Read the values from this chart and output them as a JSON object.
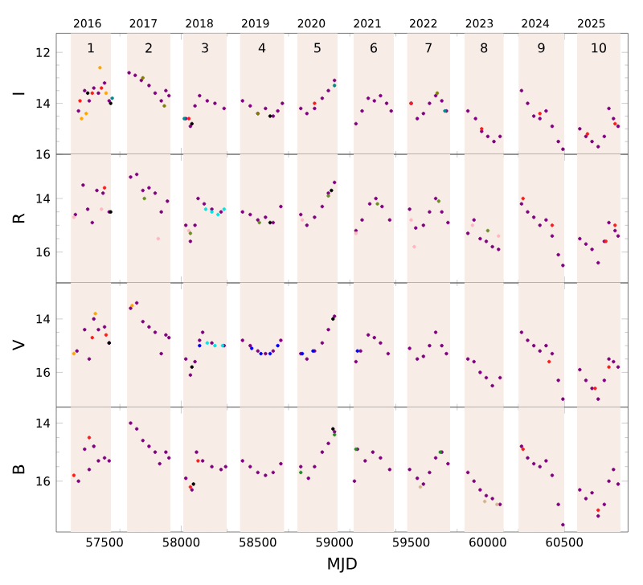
{
  "chart_data": [
    {
      "type": "scatter",
      "ylabel": "I",
      "marker": "circle",
      "tick_labels": "y",
      "xlim": [
        57185,
        60915
      ],
      "ylim": [
        16,
        11.25
      ],
      "yticks": [
        12,
        14,
        16
      ],
      "xticks": [
        57500,
        58000,
        58500,
        59000,
        59500,
        60000,
        60500
      ],
      "x2lim": [
        2015.444,
        2025.654
      ],
      "x2ticks": [
        2016,
        2017,
        2018,
        2019,
        2020,
        2021,
        2022,
        2023,
        2024,
        2025
      ],
      "bands": [
        {
          "axis": "x",
          "from": 57280,
          "to": 57542,
          "color": "#f7ece6",
          "label": "1"
        },
        {
          "axis": "x",
          "from": 57647,
          "to": 57930,
          "color": "#f7ece6",
          "label": "2"
        },
        {
          "axis": "x",
          "from": 58014,
          "to": 58297,
          "color": "#f7ece6",
          "label": "3"
        },
        {
          "axis": "x",
          "from": 58384,
          "to": 58671,
          "color": "#f7ece6",
          "label": "4"
        },
        {
          "axis": "x",
          "from": 58758,
          "to": 59020,
          "color": "#f7ece6",
          "label": "5"
        },
        {
          "axis": "x",
          "from": 59125,
          "to": 59387,
          "color": "#f7ece6",
          "label": "6"
        },
        {
          "axis": "x",
          "from": 59474,
          "to": 59754,
          "color": "#f7ece6",
          "label": "7"
        },
        {
          "axis": "x",
          "from": 59848,
          "to": 60103,
          "color": "#f7ece6",
          "label": "8"
        },
        {
          "axis": "x",
          "from": 60201,
          "to": 60498,
          "color": "#f7ece6",
          "label": "9"
        },
        {
          "axis": "x",
          "from": 60582,
          "to": 60865,
          "color": "#f7ece6",
          "label": "10"
        }
      ],
      "series": [
        {
          "color": "#800080",
          "x": [
            57330,
            57370,
            57400,
            57430,
            57460,
            57500,
            57530,
            57660,
            57700,
            57740,
            57790,
            57830,
            57870,
            57900,
            57920,
            58030,
            58060,
            58090,
            58120,
            58170,
            58220,
            58280,
            58400,
            58450,
            58500,
            58550,
            58600,
            58630,
            58660,
            58780,
            58820,
            58870,
            58920,
            58960,
            59000,
            59140,
            59180,
            59220,
            59260,
            59300,
            59340,
            59370,
            59500,
            59540,
            59580,
            59620,
            59660,
            59700,
            59730,
            59870,
            59920,
            59960,
            60000,
            60040,
            60080,
            60220,
            60260,
            60300,
            60340,
            60380,
            60420,
            60460,
            60490,
            60600,
            60640,
            60680,
            60720,
            60760,
            60790,
            60820,
            60850
          ],
          "values": [
            14.3,
            13.5,
            13.9,
            13.4,
            13.6,
            13.2,
            13.9,
            12.8,
            12.9,
            13.1,
            13.3,
            13.6,
            13.9,
            13.5,
            13.7,
            14.6,
            14.9,
            14.1,
            13.7,
            13.9,
            14.0,
            14.2,
            13.9,
            14.1,
            14.4,
            14.2,
            14.5,
            14.3,
            14.0,
            14.2,
            14.4,
            14.2,
            13.8,
            13.5,
            13.1,
            14.8,
            14.3,
            13.8,
            13.9,
            13.7,
            14.0,
            14.3,
            14.0,
            14.6,
            14.4,
            14.0,
            13.7,
            13.9,
            14.3,
            14.3,
            14.6,
            15.1,
            15.3,
            15.5,
            15.3,
            13.5,
            14.0,
            14.5,
            14.6,
            14.3,
            14.9,
            15.5,
            15.8,
            15.0,
            15.3,
            15.5,
            15.7,
            15.3,
            14.2,
            14.6,
            14.9
          ]
        },
        {
          "color": "#ff1a1a",
          "x": [
            57340,
            57420,
            57480,
            58050,
            58870,
            59500,
            59960,
            60340,
            60650,
            60830
          ],
          "values": [
            13.9,
            13.6,
            13.4,
            14.6,
            14.0,
            14.0,
            15.0,
            14.4,
            15.2,
            14.8
          ]
        },
        {
          "color": "#ffa500",
          "x": [
            57350,
            57380,
            57470,
            57510
          ],
          "values": [
            14.6,
            14.4,
            12.6,
            13.6
          ]
        },
        {
          "color": "#000000",
          "x": [
            57390,
            57540,
            58070,
            58580
          ],
          "values": [
            13.6,
            14.0,
            14.8,
            14.5
          ]
        },
        {
          "color": "#808000",
          "x": [
            57750,
            57890,
            58500,
            59670
          ],
          "values": [
            13.0,
            14.1,
            14.4,
            13.6
          ]
        },
        {
          "color": "#008b8b",
          "x": [
            57550,
            58020,
            59000,
            59720
          ],
          "values": [
            13.8,
            14.6,
            13.3,
            14.3
          ]
        }
      ]
    },
    {
      "type": "scatter",
      "ylabel": "R",
      "marker": "circle",
      "tick_labels": "y",
      "xlim": [
        57185,
        60915
      ],
      "ylim": [
        17.15,
        12.35
      ],
      "yticks": [
        14,
        16
      ],
      "xticks": [
        57500,
        58000,
        58500,
        59000,
        59500,
        60000,
        60500
      ],
      "bands": [
        {
          "axis": "x",
          "from": 57280,
          "to": 57542,
          "color": "#f7ece6"
        },
        {
          "axis": "x",
          "from": 57647,
          "to": 57930,
          "color": "#f7ece6"
        },
        {
          "axis": "x",
          "from": 58014,
          "to": 58297,
          "color": "#f7ece6"
        },
        {
          "axis": "x",
          "from": 58384,
          "to": 58671,
          "color": "#f7ece6"
        },
        {
          "axis": "x",
          "from": 58758,
          "to": 59020,
          "color": "#f7ece6"
        },
        {
          "axis": "x",
          "from": 59125,
          "to": 59387,
          "color": "#f7ece6"
        },
        {
          "axis": "x",
          "from": 59474,
          "to": 59754,
          "color": "#f7ece6"
        },
        {
          "axis": "x",
          "from": 59848,
          "to": 60103,
          "color": "#f7ece6"
        },
        {
          "axis": "x",
          "from": 60201,
          "to": 60498,
          "color": "#f7ece6"
        },
        {
          "axis": "x",
          "from": 60582,
          "to": 60865,
          "color": "#f7ece6"
        }
      ],
      "series": [
        {
          "color": "#800080",
          "x": [
            57310,
            57360,
            57390,
            57420,
            57450,
            57490,
            57530,
            57670,
            57710,
            57750,
            57790,
            57830,
            57870,
            57910,
            58030,
            58060,
            58090,
            58110,
            58150,
            58200,
            58260,
            58400,
            58450,
            58500,
            58550,
            58600,
            58650,
            58780,
            58820,
            58870,
            58920,
            58960,
            59000,
            59140,
            59180,
            59230,
            59270,
            59310,
            59360,
            59490,
            59530,
            59580,
            59620,
            59660,
            59700,
            59740,
            59870,
            59910,
            59950,
            59990,
            60030,
            60070,
            60220,
            60260,
            60300,
            60340,
            60380,
            60420,
            60460,
            60490,
            60600,
            60640,
            60680,
            60720,
            60760,
            60790,
            60830,
            60850
          ],
          "values": [
            14.6,
            13.5,
            14.4,
            14.9,
            13.7,
            13.8,
            14.5,
            13.2,
            13.1,
            13.7,
            13.6,
            13.8,
            14.5,
            14.1,
            15.0,
            15.6,
            15.0,
            14.0,
            14.2,
            14.4,
            14.5,
            14.5,
            14.6,
            14.8,
            14.7,
            14.9,
            14.3,
            14.6,
            15.0,
            14.7,
            14.3,
            13.8,
            13.4,
            15.2,
            14.8,
            14.2,
            14.0,
            14.3,
            14.8,
            14.4,
            15.1,
            15.0,
            14.5,
            14.0,
            14.5,
            14.9,
            15.3,
            14.8,
            15.5,
            15.6,
            15.8,
            15.9,
            14.2,
            14.5,
            14.7,
            15.0,
            14.8,
            15.4,
            16.1,
            16.5,
            15.5,
            15.7,
            15.9,
            16.4,
            15.6,
            14.9,
            15.2,
            15.4
          ]
        },
        {
          "color": "#ffb6c1",
          "x": [
            57300,
            57480,
            57850,
            58050,
            58790,
            59140,
            59500,
            59520,
            59900,
            60070
          ],
          "values": [
            14.7,
            14.4,
            15.5,
            15.2,
            14.8,
            15.3,
            14.8,
            15.8,
            15.0,
            15.4
          ]
        },
        {
          "color": "#6b8e23",
          "x": [
            57760,
            58060,
            58510,
            58960,
            59280,
            59680,
            60000
          ],
          "values": [
            14.0,
            15.3,
            14.9,
            13.9,
            14.2,
            14.1,
            15.2
          ]
        },
        {
          "color": "#00e5e5",
          "x": [
            58160,
            58200,
            58240,
            58280
          ],
          "values": [
            14.4,
            14.5,
            14.6,
            14.4
          ]
        },
        {
          "color": "#ff1a1a",
          "x": [
            57500,
            60230,
            60420,
            60770,
            60830
          ],
          "values": [
            13.6,
            14.0,
            15.0,
            15.6,
            15.0
          ]
        },
        {
          "color": "#000000",
          "x": [
            57540,
            58980,
            58580
          ],
          "values": [
            14.5,
            13.7,
            14.9
          ]
        }
      ]
    },
    {
      "type": "scatter",
      "ylabel": "V",
      "marker": "circle",
      "tick_labels": "y",
      "xlim": [
        57185,
        60915
      ],
      "ylim": [
        17.3,
        12.65
      ],
      "yticks": [
        14,
        16
      ],
      "xticks": [
        57500,
        58000,
        58500,
        59000,
        59500,
        60000,
        60500
      ],
      "bands": [
        {
          "axis": "x",
          "from": 57280,
          "to": 57542,
          "color": "#f7ece6"
        },
        {
          "axis": "x",
          "from": 57647,
          "to": 57930,
          "color": "#f7ece6"
        },
        {
          "axis": "x",
          "from": 58014,
          "to": 58297,
          "color": "#f7ece6"
        },
        {
          "axis": "x",
          "from": 58384,
          "to": 58671,
          "color": "#f7ece6"
        },
        {
          "axis": "x",
          "from": 58758,
          "to": 59020,
          "color": "#f7ece6"
        },
        {
          "axis": "x",
          "from": 59125,
          "to": 59387,
          "color": "#f7ece6"
        },
        {
          "axis": "x",
          "from": 59474,
          "to": 59754,
          "color": "#f7ece6"
        },
        {
          "axis": "x",
          "from": 59848,
          "to": 60103,
          "color": "#f7ece6"
        },
        {
          "axis": "x",
          "from": 60201,
          "to": 60498,
          "color": "#f7ece6"
        },
        {
          "axis": "x",
          "from": 60582,
          "to": 60865,
          "color": "#f7ece6"
        }
      ],
      "series": [
        {
          "color": "#800080",
          "x": [
            57320,
            57370,
            57400,
            57430,
            57460,
            57500,
            57530,
            57670,
            57710,
            57750,
            57790,
            57830,
            57870,
            57900,
            57920,
            58030,
            58060,
            58090,
            58120,
            58140,
            58200,
            58280,
            58400,
            58450,
            58500,
            58550,
            58600,
            58650,
            58780,
            58820,
            58870,
            58920,
            58960,
            59000,
            59140,
            59170,
            59220,
            59260,
            59300,
            59350,
            59490,
            59540,
            59580,
            59620,
            59660,
            59700,
            59730,
            59870,
            59910,
            59950,
            59990,
            60030,
            60080,
            60220,
            60260,
            60300,
            60340,
            60380,
            60420,
            60460,
            60490,
            60600,
            60640,
            60680,
            60720,
            60760,
            60790,
            60820,
            60850
          ],
          "values": [
            15.2,
            14.4,
            15.5,
            14.0,
            14.4,
            14.3,
            14.9,
            13.6,
            13.4,
            14.1,
            14.3,
            14.5,
            15.3,
            14.6,
            14.7,
            15.5,
            16.1,
            15.6,
            14.8,
            14.5,
            14.9,
            15.0,
            14.8,
            15.0,
            15.2,
            15.3,
            15.2,
            14.8,
            15.3,
            15.5,
            15.2,
            14.9,
            14.4,
            13.9,
            15.6,
            15.2,
            14.6,
            14.7,
            14.9,
            15.3,
            15.1,
            15.5,
            15.4,
            15.0,
            14.5,
            15.0,
            15.3,
            15.5,
            15.6,
            16.0,
            16.2,
            16.5,
            16.2,
            14.5,
            14.8,
            15.0,
            15.2,
            15.0,
            15.3,
            16.3,
            17.0,
            15.9,
            16.3,
            16.6,
            17.0,
            16.3,
            15.5,
            15.6,
            15.8
          ]
        },
        {
          "color": "#0000ff",
          "x": [
            58120,
            58460,
            58520,
            58580,
            58630,
            58790,
            58860,
            59150
          ],
          "values": [
            15.0,
            15.1,
            15.3,
            15.3,
            15.0,
            15.3,
            15.2,
            15.2
          ]
        },
        {
          "color": "#00e5e5",
          "x": [
            58170,
            58220,
            58270
          ],
          "values": [
            14.9,
            15.0,
            15.0
          ]
        },
        {
          "color": "#ffa500",
          "x": [
            57300,
            57440,
            57680
          ],
          "values": [
            15.3,
            13.8,
            13.5
          ]
        },
        {
          "color": "#ff1a1a",
          "x": [
            57420,
            57510,
            60400,
            60790,
            60700
          ],
          "values": [
            14.7,
            14.6,
            15.6,
            15.8,
            16.6
          ]
        },
        {
          "color": "#000000",
          "x": [
            57530,
            58070,
            58990
          ],
          "values": [
            14.9,
            15.8,
            14.0
          ]
        }
      ]
    },
    {
      "type": "scatter",
      "ylabel": "B",
      "xlabel": "MJD",
      "marker": "circle",
      "xlim": [
        57185,
        60915
      ],
      "ylim": [
        17.75,
        13.45
      ],
      "yticks": [
        14,
        16
      ],
      "xticks": [
        57500,
        58000,
        58500,
        59000,
        59500,
        60000,
        60500
      ],
      "bands": [
        {
          "axis": "x",
          "from": 57280,
          "to": 57542,
          "color": "#f7ece6"
        },
        {
          "axis": "x",
          "from": 57647,
          "to": 57930,
          "color": "#f7ece6"
        },
        {
          "axis": "x",
          "from": 58014,
          "to": 58297,
          "color": "#f7ece6"
        },
        {
          "axis": "x",
          "from": 58384,
          "to": 58671,
          "color": "#f7ece6"
        },
        {
          "axis": "x",
          "from": 58758,
          "to": 59020,
          "color": "#f7ece6"
        },
        {
          "axis": "x",
          "from": 59125,
          "to": 59387,
          "color": "#f7ece6"
        },
        {
          "axis": "x",
          "from": 59474,
          "to": 59754,
          "color": "#f7ece6"
        },
        {
          "axis": "x",
          "from": 59848,
          "to": 60103,
          "color": "#f7ece6"
        },
        {
          "axis": "x",
          "from": 60201,
          "to": 60498,
          "color": "#f7ece6"
        },
        {
          "axis": "x",
          "from": 60582,
          "to": 60865,
          "color": "#f7ece6"
        }
      ],
      "series": [
        {
          "color": "#800080",
          "x": [
            57330,
            57370,
            57400,
            57430,
            57460,
            57500,
            57530,
            57670,
            57710,
            57750,
            57790,
            57830,
            57860,
            57900,
            57920,
            58030,
            58070,
            58100,
            58140,
            58200,
            58260,
            58290,
            58400,
            58450,
            58500,
            58550,
            58600,
            58650,
            58780,
            58830,
            58870,
            58920,
            58960,
            59000,
            59130,
            59150,
            59200,
            59250,
            59300,
            59360,
            59490,
            59540,
            59580,
            59620,
            59660,
            59700,
            59740,
            59870,
            59910,
            59950,
            59990,
            60030,
            60080,
            60220,
            60260,
            60300,
            60340,
            60380,
            60420,
            60460,
            60490,
            60600,
            60640,
            60680,
            60720,
            60760,
            60790,
            60820,
            60850
          ],
          "values": [
            16.0,
            14.9,
            15.6,
            14.8,
            15.3,
            15.2,
            15.3,
            14.0,
            14.2,
            14.6,
            14.8,
            15.0,
            15.4,
            15.0,
            15.2,
            15.9,
            16.3,
            15.0,
            15.3,
            15.5,
            15.6,
            15.5,
            15.3,
            15.5,
            15.7,
            15.8,
            15.7,
            15.4,
            15.5,
            15.9,
            15.5,
            15.0,
            14.7,
            14.3,
            16.0,
            14.9,
            15.3,
            15.0,
            15.2,
            15.6,
            15.6,
            15.9,
            16.1,
            15.7,
            15.2,
            15.0,
            15.4,
            15.7,
            16.0,
            16.3,
            16.5,
            16.6,
            16.8,
            14.8,
            15.2,
            15.4,
            15.5,
            15.3,
            15.8,
            16.8,
            17.5,
            16.3,
            16.6,
            16.4,
            17.2,
            16.8,
            16.0,
            15.6,
            16.1
          ]
        },
        {
          "color": "#ff1a1a",
          "x": [
            57300,
            57400,
            58060,
            58110,
            60230,
            60720
          ],
          "values": [
            15.8,
            14.5,
            16.2,
            15.3,
            14.9,
            17.0
          ]
        },
        {
          "color": "#d2b48c",
          "x": [
            59560,
            59980,
            60060
          ],
          "values": [
            16.2,
            16.7,
            16.8
          ]
        },
        {
          "color": "#228b22",
          "x": [
            58780,
            59000,
            59140,
            59690
          ],
          "values": [
            15.7,
            14.4,
            14.9,
            15.0
          ]
        },
        {
          "color": "#000000",
          "x": [
            58080,
            58990
          ],
          "values": [
            16.1,
            14.2
          ]
        }
      ]
    }
  ]
}
